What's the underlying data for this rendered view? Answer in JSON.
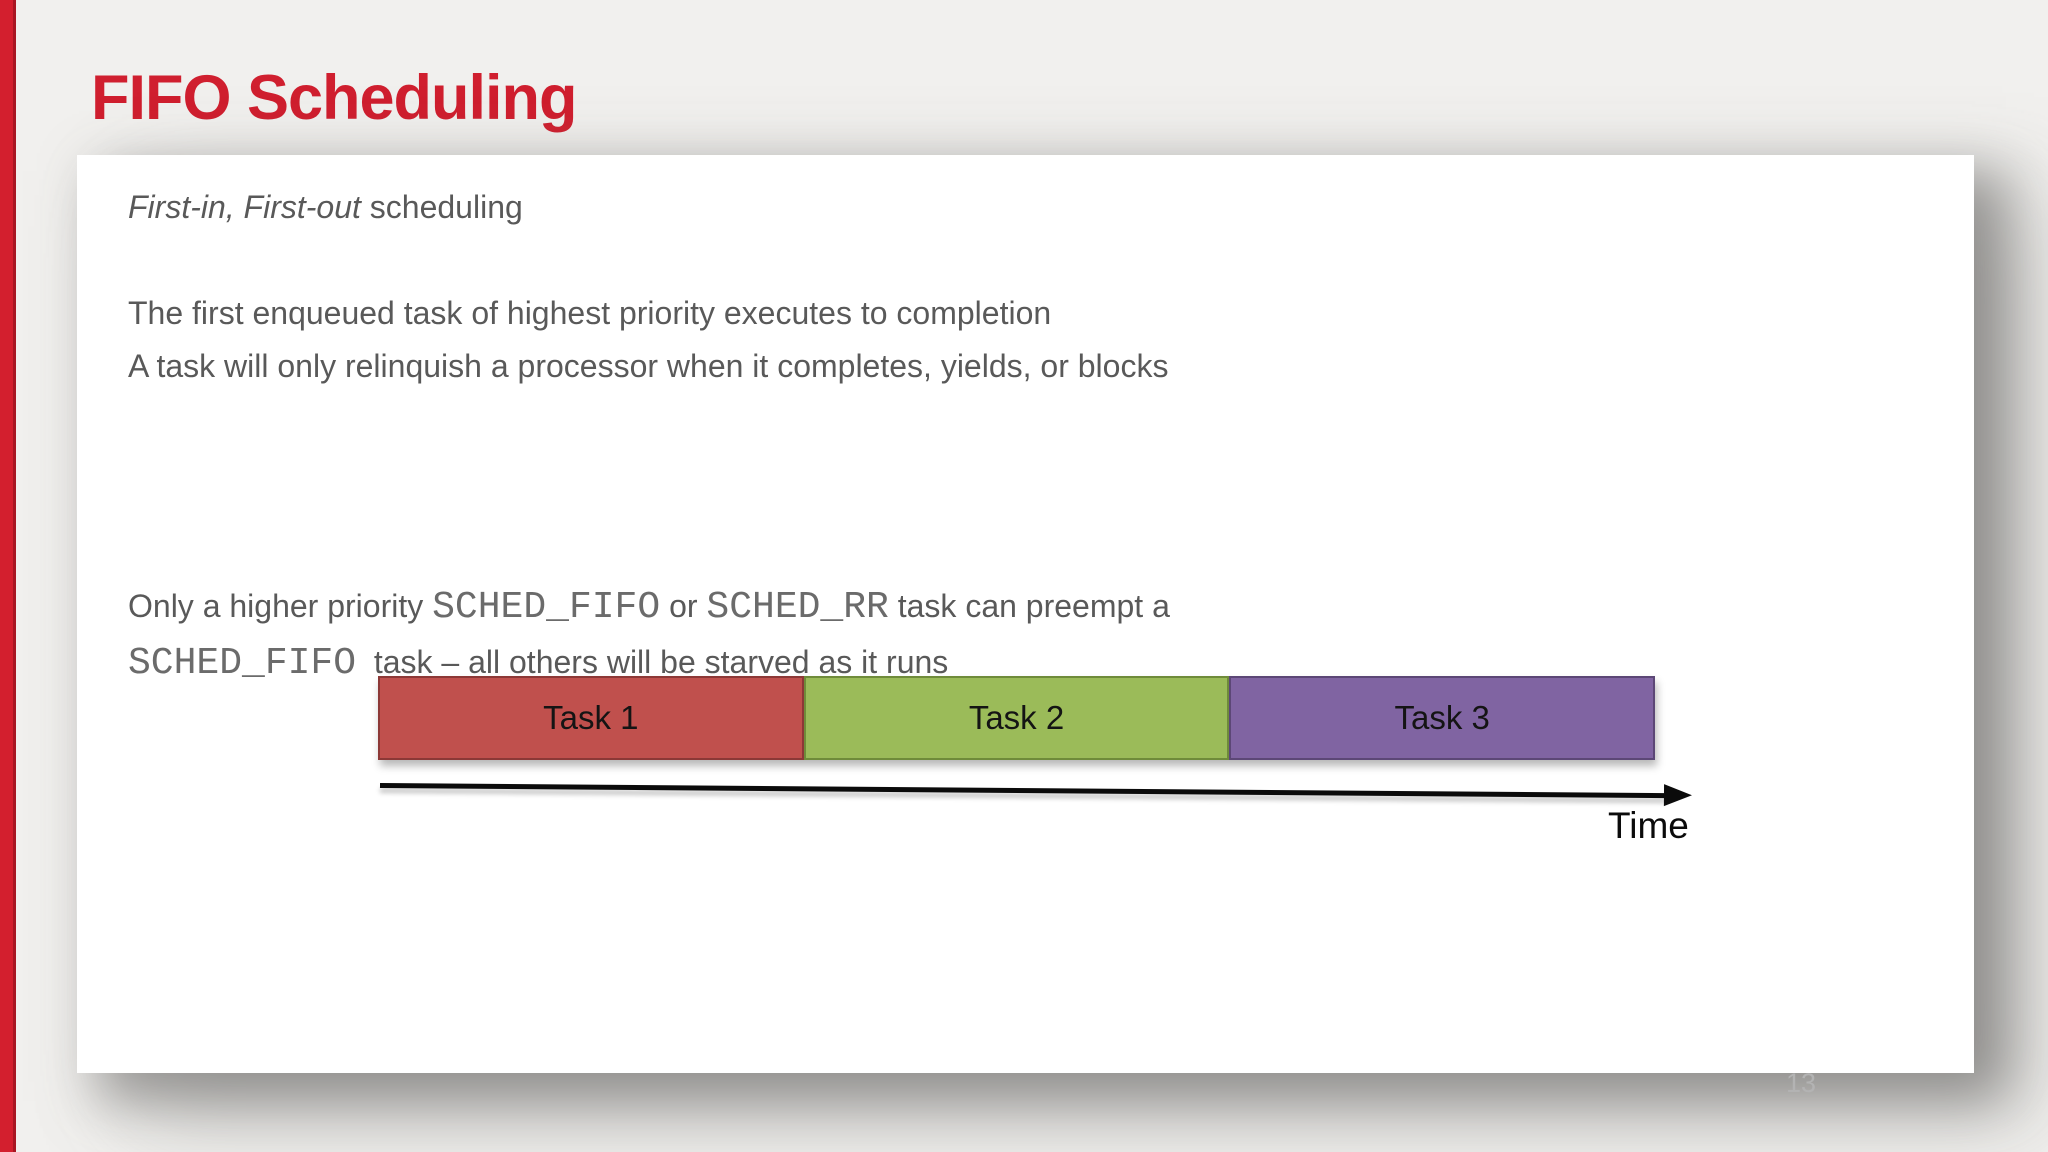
{
  "theme": {
    "accent_red": "#d01f2f",
    "sidebar_red": "#d31f2e",
    "sidebar_edge": "#a81622",
    "body_text": "#595959",
    "page_bg": "#f1f0ee",
    "slide_bg": "#ffffff"
  },
  "slide": {
    "title": "FIFO Scheduling",
    "page_number": "13"
  },
  "content": {
    "intro_italic": "First-in, First-out",
    "intro_rest": " scheduling",
    "para1_line1": "The first enqueued task of highest priority executes to completion",
    "para1_line2": "A task will only relinquish a processor when it completes, yields, or blocks",
    "para2": {
      "t1": "Only a higher priority ",
      "m1": "SCHED_FIFO",
      "t2": " or ",
      "m2": "SCHED_RR",
      "t3": " task can preempt a",
      "m3": "SCHED_FIFO",
      "t4": "  task – all others will be starved as it runs"
    }
  },
  "diagram": {
    "type": "timeline",
    "tasks": [
      {
        "label": "Task 1",
        "fill": "#c0504d",
        "border": "#8c3836"
      },
      {
        "label": "Task 2",
        "fill": "#9bbb59",
        "border": "#6f8b3a"
      },
      {
        "label": "Task 3",
        "fill": "#8064a2",
        "border": "#5c4776"
      }
    ],
    "axis_label": "Time"
  }
}
